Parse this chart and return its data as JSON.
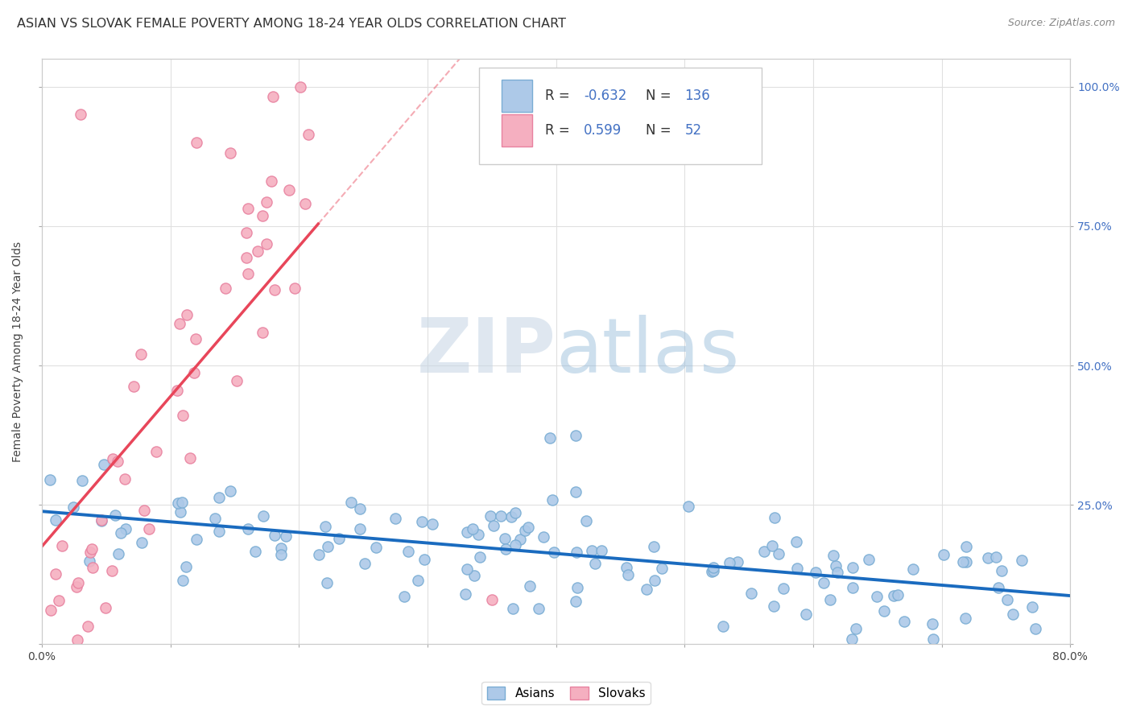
{
  "title": "ASIAN VS SLOVAK FEMALE POVERTY AMONG 18-24 YEAR OLDS CORRELATION CHART",
  "source": "Source: ZipAtlas.com",
  "ylabel": "Female Poverty Among 18-24 Year Olds",
  "xlim": [
    0.0,
    0.8
  ],
  "ylim": [
    0.0,
    1.05
  ],
  "asian_R": -0.632,
  "asian_N": 136,
  "slovak_R": 0.599,
  "slovak_N": 52,
  "asian_color": "#adc9e8",
  "asian_edge_color": "#7aadd4",
  "slovak_color": "#f5afc0",
  "slovak_edge_color": "#e882a0",
  "asian_line_color": "#1a6bbf",
  "slovak_line_color": "#e8465a",
  "grid_color": "#e0e0e0",
  "background_color": "#ffffff",
  "watermark_zip_color": "#c8d8e8",
  "watermark_atlas_color": "#aac8e0",
  "title_color": "#333333",
  "source_color": "#888888",
  "right_axis_color": "#4472c4",
  "legend_value_color": "#4472c4",
  "legend_label_color": "#333333"
}
